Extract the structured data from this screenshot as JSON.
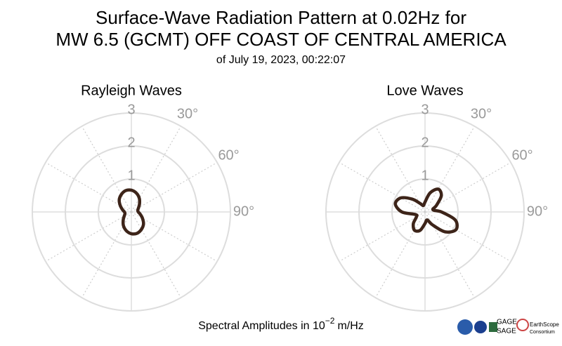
{
  "title": [
    "Surface-Wave Radiation Pattern at 0.02Hz for",
    "MW 6.5 (GCMT) OFF COAST OF CENTRAL AMERICA"
  ],
  "subtitle": "of July 19, 2023, 00:22:07",
  "footer": {
    "label": "Spectral Amplitudes in 10",
    "exponent": "−2",
    "unit": "m/Hz"
  },
  "logos": [
    "GAGE",
    "SAGE",
    "EarthScope",
    "Consortium"
  ],
  "chart_data": [
    {
      "type": "polar",
      "title": "Rayleigh Waves",
      "color": "#3d2419",
      "theta": [
        0,
        15,
        30,
        45,
        60,
        75,
        90,
        105,
        120,
        135,
        150,
        165,
        180,
        195,
        210,
        225,
        240,
        255,
        270,
        285,
        300,
        315,
        330,
        345
      ],
      "values": [
        0.66,
        0.59,
        0.48,
        0.35,
        0.25,
        0.2,
        0.21,
        0.28,
        0.39,
        0.52,
        0.61,
        0.67,
        0.66,
        0.59,
        0.48,
        0.35,
        0.25,
        0.2,
        0.21,
        0.28,
        0.39,
        0.52,
        0.61,
        0.67
      ],
      "rlim": [
        0,
        3
      ],
      "rticks": [
        1,
        2,
        3
      ],
      "thetaticks": [
        {
          "value": 30,
          "label": "30°"
        },
        {
          "value": 60,
          "label": "60°"
        },
        {
          "value": 90,
          "label": "90°"
        }
      ]
    },
    {
      "type": "polar",
      "title": "Love Waves",
      "color": "#3d2419",
      "theta": [
        0,
        15,
        30,
        45,
        60,
        75,
        90,
        105,
        120,
        135,
        150,
        165,
        180,
        195,
        210,
        225,
        240,
        255,
        270,
        285,
        300,
        315,
        330,
        345
      ],
      "values": [
        0.3,
        0.6,
        0.8,
        0.7,
        0.4,
        0.25,
        0.5,
        0.95,
        1.08,
        0.85,
        0.45,
        0.25,
        0.35,
        0.58,
        0.64,
        0.5,
        0.3,
        0.3,
        0.7,
        0.93,
        0.85,
        0.55,
        0.3,
        0.2
      ],
      "rlim": [
        0,
        3
      ],
      "rticks": [
        1,
        2,
        3
      ],
      "thetaticks": [
        {
          "value": 30,
          "label": "30°"
        },
        {
          "value": 60,
          "label": "60°"
        },
        {
          "value": 90,
          "label": "90°"
        }
      ]
    }
  ]
}
